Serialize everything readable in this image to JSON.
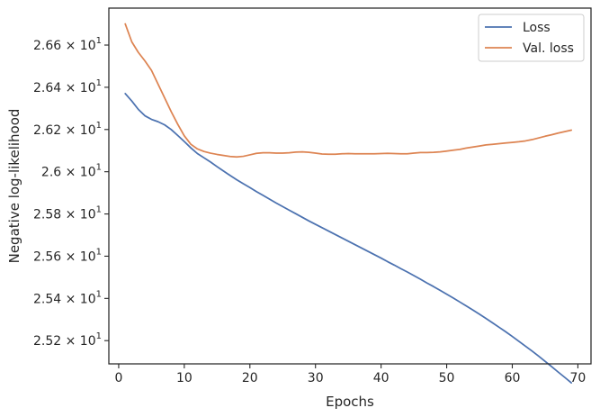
{
  "chart_data": {
    "type": "line",
    "title": "",
    "xlabel": "Epochs",
    "ylabel": "Negative log-likelihood",
    "xlim": [
      -1.5,
      72
    ],
    "ylim": [
      25.09,
      26.775
    ],
    "x_ticks": [
      0,
      10,
      20,
      30,
      40,
      50,
      60,
      70
    ],
    "y_ticks": [
      {
        "value": 25.2,
        "mantissa": "2.52",
        "exponent": "1"
      },
      {
        "value": 25.4,
        "mantissa": "2.54",
        "exponent": "1"
      },
      {
        "value": 25.6,
        "mantissa": "2.56",
        "exponent": "1"
      },
      {
        "value": 25.8,
        "mantissa": "2.58",
        "exponent": "1"
      },
      {
        "value": 26.0,
        "mantissa": "2.6",
        "exponent": "1"
      },
      {
        "value": 26.2,
        "mantissa": "2.62",
        "exponent": "1"
      },
      {
        "value": 26.4,
        "mantissa": "2.64",
        "exponent": "1"
      },
      {
        "value": 26.6,
        "mantissa": "2.66",
        "exponent": "1"
      }
    ],
    "tick_times": "×",
    "tick_base": "10",
    "grid": false,
    "legend_position": "top-right",
    "x": [
      1,
      2,
      3,
      4,
      5,
      6,
      7,
      8,
      9,
      10,
      11,
      12,
      13,
      14,
      15,
      16,
      17,
      18,
      19,
      20,
      21,
      22,
      23,
      24,
      25,
      26,
      27,
      28,
      29,
      30,
      31,
      32,
      33,
      34,
      35,
      36,
      37,
      38,
      39,
      40,
      41,
      42,
      43,
      44,
      45,
      46,
      47,
      48,
      49,
      50,
      51,
      52,
      53,
      54,
      55,
      56,
      57,
      58,
      59,
      60,
      61,
      62,
      63,
      64,
      65,
      66,
      67,
      68,
      69
    ],
    "series": [
      {
        "name": "Loss",
        "color": "#4c72b0",
        "values": [
          26.37,
          26.335,
          26.295,
          26.265,
          26.248,
          26.237,
          26.222,
          26.2,
          26.172,
          26.143,
          26.113,
          26.086,
          26.066,
          26.046,
          26.024,
          26.003,
          25.982,
          25.962,
          25.943,
          25.925,
          25.906,
          25.888,
          25.87,
          25.852,
          25.835,
          25.818,
          25.801,
          25.784,
          25.767,
          25.751,
          25.735,
          25.719,
          25.703,
          25.687,
          25.671,
          25.655,
          25.639,
          25.623,
          25.607,
          25.591,
          25.574,
          25.558,
          25.541,
          25.525,
          25.508,
          25.491,
          25.473,
          25.456,
          25.438,
          25.42,
          25.402,
          25.383,
          25.364,
          25.345,
          25.325,
          25.305,
          25.284,
          25.263,
          25.242,
          25.22,
          25.197,
          25.174,
          25.151,
          25.127,
          25.102,
          25.077,
          25.051,
          25.026,
          25.0
        ]
      },
      {
        "name": "Val. loss",
        "color": "#dd8452",
        "values": [
          26.7,
          26.615,
          26.565,
          26.525,
          26.48,
          26.415,
          26.35,
          26.285,
          26.225,
          26.17,
          26.13,
          26.108,
          26.096,
          26.088,
          26.082,
          26.077,
          26.072,
          26.07,
          26.073,
          26.08,
          26.087,
          26.09,
          26.09,
          26.088,
          26.088,
          26.09,
          26.093,
          26.094,
          26.092,
          26.088,
          26.084,
          26.083,
          26.083,
          26.085,
          26.086,
          26.085,
          26.085,
          26.085,
          26.085,
          26.086,
          26.087,
          26.086,
          26.085,
          26.085,
          26.088,
          26.091,
          26.091,
          26.092,
          26.094,
          26.098,
          26.102,
          26.106,
          26.112,
          26.117,
          26.122,
          26.127,
          26.13,
          26.133,
          26.136,
          26.139,
          26.142,
          26.146,
          26.152,
          26.16,
          26.168,
          26.175,
          26.183,
          26.19,
          26.197
        ]
      }
    ]
  }
}
